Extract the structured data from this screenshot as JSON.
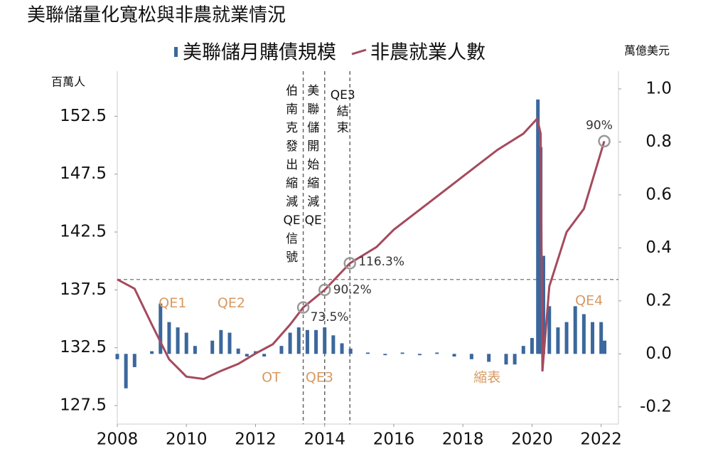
{
  "chart_data": {
    "type": "combo",
    "title": "美聯儲量化寬松與非農就業情況",
    "y_label": "百萬人",
    "y2_label": "萬億美元",
    "xlim": [
      2008,
      2022.5
    ],
    "xticks": [
      2008,
      2010,
      2012,
      2014,
      2016,
      2018,
      2020,
      2022
    ],
    "ylim": [
      125.9,
      156.4
    ],
    "yticks": [
      127.5,
      132.5,
      137.5,
      142.5,
      147.5,
      152.5
    ],
    "y2lim": [
      -0.265,
      1.067
    ],
    "y2ticks": [
      -0.2,
      {
        "value": 0,
        "label": "0.0"
      },
      0.2,
      0.4,
      0.6,
      0.8,
      {
        "value": 1,
        "label": "1.0"
      }
    ],
    "reference_line": 138.4,
    "series": [
      {
        "name": "美聯儲月購債規模",
        "type": "bar",
        "axis": "y2",
        "color": "#3b679c",
        "x": [
          2008.0,
          2008.25,
          2008.5,
          2008.75,
          2009.0,
          2009.25,
          2009.5,
          2009.75,
          2010.0,
          2010.25,
          2010.5,
          2010.75,
          2011.0,
          2011.25,
          2011.5,
          2011.75,
          2012.0,
          2012.25,
          2012.5,
          2012.75,
          2013.0,
          2013.25,
          2013.5,
          2013.75,
          2014.0,
          2014.25,
          2014.5,
          2014.75,
          2015.25,
          2015.75,
          2016.25,
          2016.75,
          2017.25,
          2017.75,
          2018.25,
          2018.75,
          2019.25,
          2019.5,
          2019.75,
          2020.0,
          2020.17,
          2020.25,
          2020.33,
          2020.5,
          2020.75,
          2021.0,
          2021.25,
          2021.5,
          2021.75,
          2022.0,
          2022.1
        ],
        "values": [
          -0.02,
          -0.13,
          -0.05,
          0.0,
          0.01,
          0.19,
          0.12,
          0.1,
          0.08,
          0.03,
          0.0,
          0.05,
          0.09,
          0.08,
          0.02,
          -0.01,
          0.01,
          -0.01,
          0.0,
          0.03,
          0.08,
          0.1,
          0.09,
          0.09,
          0.1,
          0.07,
          0.04,
          0.02,
          0.005,
          -0.005,
          0.005,
          -0.005,
          0.005,
          -0.01,
          -0.02,
          -0.03,
          -0.04,
          -0.04,
          0.03,
          0.06,
          0.96,
          0.78,
          0.37,
          0.18,
          0.1,
          0.12,
          0.18,
          0.15,
          0.12,
          0.12,
          0.05
        ]
      },
      {
        "name": "非農就業人數",
        "type": "line",
        "color": "#a54a5e",
        "x": [
          2008.0,
          2008.5,
          2009.0,
          2009.5,
          2010.0,
          2010.5,
          2011.0,
          2011.5,
          2012.0,
          2012.5,
          2013.0,
          2013.38,
          2014.0,
          2014.73,
          2015.5,
          2016.0,
          2017.0,
          2018.0,
          2019.0,
          2019.75,
          2020.15,
          2020.25,
          2020.3,
          2020.5,
          2021.0,
          2021.5,
          2022.09
        ],
        "values": [
          138.4,
          137.6,
          134.5,
          131.5,
          130.0,
          129.8,
          130.5,
          131.1,
          132.0,
          132.8,
          134.5,
          135.98,
          137.5,
          139.8,
          141.2,
          142.7,
          145.0,
          147.3,
          149.6,
          151.0,
          152.3,
          151.0,
          130.45,
          137.8,
          142.5,
          144.5,
          150.35
        ]
      }
    ],
    "highlights": [
      {
        "x": 2013.38,
        "y": 135.98,
        "label": "73.5%"
      },
      {
        "x": 2014.0,
        "y": 137.5,
        "label": "90.2%"
      },
      {
        "x": 2014.73,
        "y": 139.8,
        "label": "116.3%"
      },
      {
        "x": 2022.09,
        "y": 150.35,
        "label": "90%"
      }
    ],
    "events": [
      {
        "x": 2013.38,
        "label": "伯南克發出縮減QE信號"
      },
      {
        "x": 2014.0,
        "label": "美聯儲開始縮減QE"
      },
      {
        "x": 2014.73,
        "label": "QE3結束"
      }
    ],
    "phase_labels": [
      "QE1",
      "QE2",
      "OT",
      "QE3",
      "縮表",
      "QE4"
    ]
  }
}
